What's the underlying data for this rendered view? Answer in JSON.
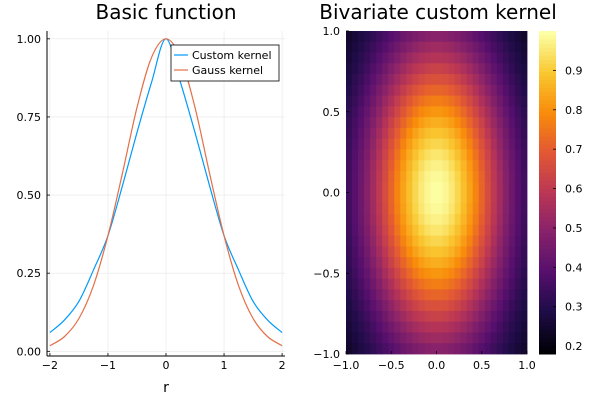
{
  "chart_data": [
    {
      "type": "line",
      "title": "Basic function",
      "xlabel": "r",
      "ylabel": "",
      "xlim": [
        -2.05,
        2.05
      ],
      "ylim": [
        -0.015,
        1.025
      ],
      "xticks": [
        -2,
        -1,
        0,
        1,
        2
      ],
      "xtick_labels": [
        "−2",
        "−1",
        "0",
        "1",
        "2"
      ],
      "yticks": [
        0,
        0.25,
        0.5,
        0.75,
        1
      ],
      "ytick_labels": [
        "0.00",
        "0.25",
        "0.50",
        "0.75",
        "1.00"
      ],
      "grid": true,
      "legend_position": "top-right",
      "x": [
        -2.0,
        -1.75,
        -1.5,
        -1.25,
        -1.0,
        -0.75,
        -0.5,
        -0.25,
        0.0,
        0.25,
        0.5,
        0.75,
        1.0,
        1.25,
        1.5,
        1.75,
        2.0
      ],
      "series": [
        {
          "name": "Custom kernel",
          "color": "#009AFA",
          "values": [
            0.06,
            0.1,
            0.16,
            0.26,
            0.37,
            0.53,
            0.7,
            0.86,
            1.0,
            0.86,
            0.7,
            0.53,
            0.37,
            0.26,
            0.16,
            0.1,
            0.06
          ]
        },
        {
          "name": "Gauss kernel",
          "color": "#E36F47",
          "values": [
            0.018,
            0.047,
            0.105,
            0.21,
            0.37,
            0.57,
            0.78,
            0.94,
            1.0,
            0.94,
            0.78,
            0.57,
            0.37,
            0.21,
            0.105,
            0.047,
            0.018
          ]
        }
      ]
    },
    {
      "type": "heatmap",
      "title": "Bivariate custom kernel",
      "xlim": [
        -1.0,
        1.0
      ],
      "ylim": [
        -1.0,
        1.0
      ],
      "xticks": [
        -1.0,
        -0.5,
        0.0,
        0.5,
        1.0
      ],
      "xtick_labels": [
        "−1.0",
        "−0.5",
        "0.0",
        "0.5",
        "1.0"
      ],
      "yticks": [
        -1.0,
        -0.5,
        0.0,
        0.5,
        1.0
      ],
      "ytick_labels": [
        "−1.0",
        "−0.5",
        "0.0",
        "0.5",
        "1.0"
      ],
      "grid": false,
      "colormap": "inferno",
      "grid_size": 30,
      "value_range": [
        0.18,
        1.0
      ],
      "values_description_free": true,
      "colorbar_range": [
        0.18,
        1.0
      ],
      "colorbar_ticks": [
        0.2,
        0.3,
        0.4,
        0.5,
        0.6,
        0.7,
        0.8,
        0.9
      ],
      "colorbar_tick_labels": [
        "0.2",
        "0.3",
        "0.4",
        "0.5",
        "0.6",
        "0.7",
        "0.8",
        "0.9"
      ]
    }
  ]
}
